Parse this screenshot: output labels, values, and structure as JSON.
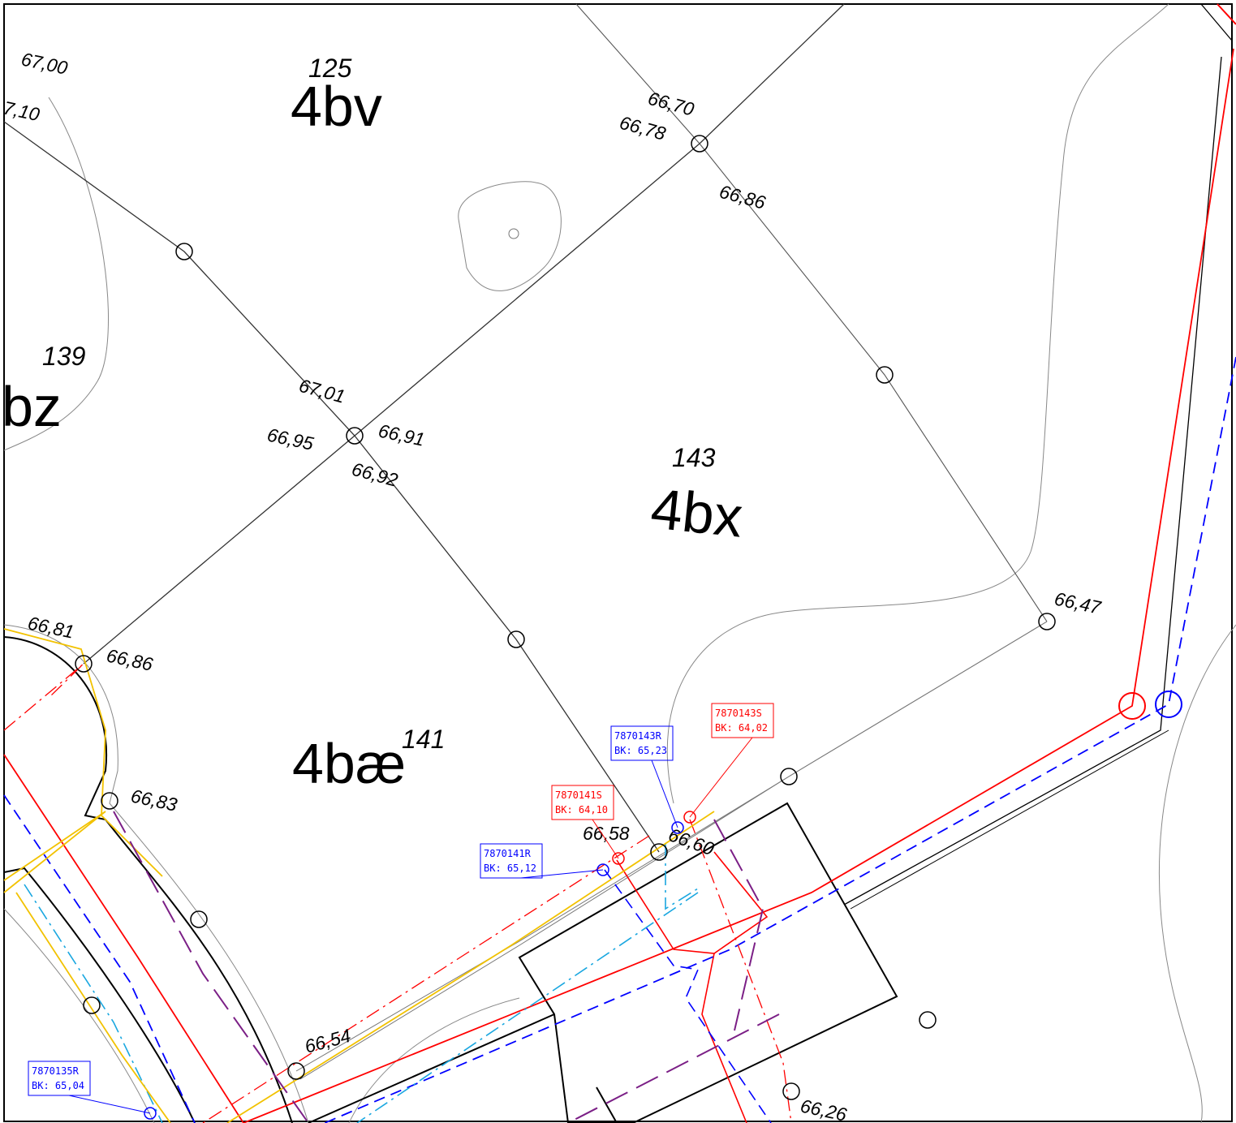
{
  "parcels": [
    {
      "number": "125",
      "code": "4bv"
    },
    {
      "number": "139",
      "code": "bz"
    },
    {
      "number": "143",
      "code": "4bx"
    },
    {
      "number": "141",
      "code": "4bæ"
    }
  ],
  "elevations": [
    "67,00",
    "7,10",
    "66,70",
    "66,78",
    "66,86",
    "67,01",
    "66,95",
    "66,91",
    "66,92",
    "66,47",
    "66,81",
    "66,86",
    "66,83",
    "66,58",
    "66,60",
    "66,54",
    "66,26"
  ],
  "manholes": [
    {
      "id": "7870143R",
      "level": "BK: 65,23",
      "color": "#0000ff"
    },
    {
      "id": "7870143S",
      "level": "BK: 64,02",
      "color": "#ff0000"
    },
    {
      "id": "7870141S",
      "level": "BK: 64,10",
      "color": "#ff0000"
    },
    {
      "id": "7870141R",
      "level": "BK: 65,12",
      "color": "#0000ff"
    },
    {
      "id": "7870135R",
      "level": "BK: 65,04",
      "color": "#0000ff"
    }
  ]
}
